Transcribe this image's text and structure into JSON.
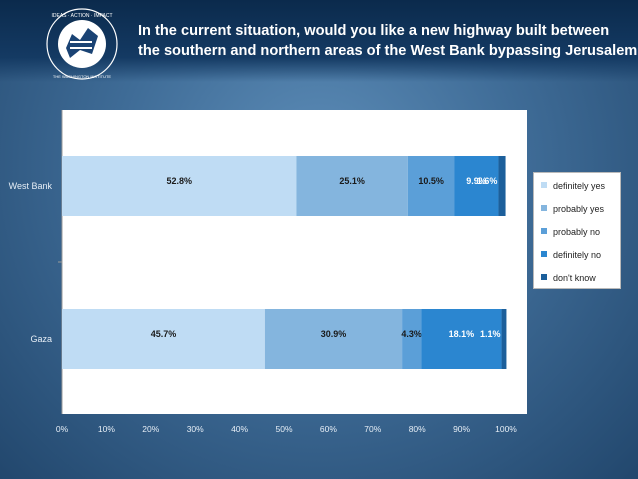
{
  "title_lines": [
    "In the current situation, would you like a new highway built between",
    "the southern  and northern areas of the West Bank bypassing Jerusalem?"
  ],
  "logo_text": "THE WASHINGTON INSTITUTE FOR NEAR EAST POLICY · IDEAS · ACTION · IMPACT",
  "chart_data": {
    "type": "bar",
    "orientation": "horizontal",
    "stacked": true,
    "categories": [
      "West Bank",
      "Gaza"
    ],
    "series": [
      {
        "name": "definitely yes",
        "values": [
          52.8,
          45.7
        ],
        "labels": [
          "52.8%",
          "45.7%"
        ],
        "color": "#bfdcf4"
      },
      {
        "name": "probably yes",
        "values": [
          25.1,
          30.9
        ],
        "labels": [
          "25.1%",
          "30.9%"
        ],
        "color": "#84b5de"
      },
      {
        "name": "probably no",
        "values": [
          10.5,
          4.3
        ],
        "labels": [
          "10.5%",
          "4.3%"
        ],
        "color": "#5b9fd8"
      },
      {
        "name": "definitely no",
        "values": [
          9.9,
          18.1
        ],
        "labels": [
          "9.9%",
          "18.1%"
        ],
        "color": "#2b86d0"
      },
      {
        "name": "don't know",
        "values": [
          1.6,
          1.1
        ],
        "labels": [
          "1.6%",
          "1.1%"
        ],
        "color": "#1c5f9b"
      }
    ],
    "xlim": [
      0,
      100
    ],
    "x_ticks": [
      "0%",
      "10%",
      "20%",
      "30%",
      "40%",
      "50%",
      "60%",
      "70%",
      "80%",
      "90%",
      "100%"
    ],
    "legend_position": "right",
    "grid": false
  }
}
